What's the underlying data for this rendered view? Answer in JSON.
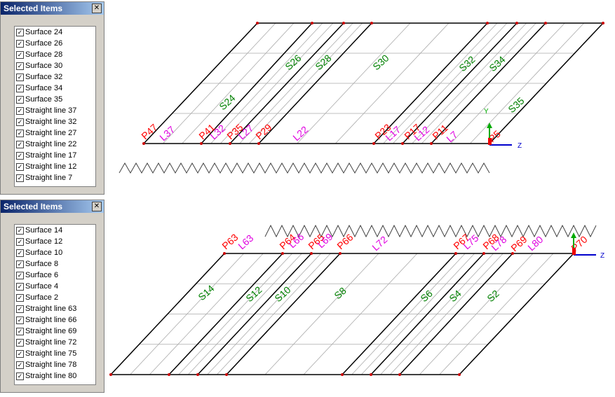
{
  "panels": [
    {
      "title": "Selected Items",
      "items": [
        "Surface 24",
        "Surface 26",
        "Surface 28",
        "Surface 30",
        "Surface 32",
        "Surface 34",
        "Surface 35",
        "Straight line 37",
        "Straight line 32",
        "Straight line 27",
        "Straight line 22",
        "Straight line 17",
        "Straight line 12",
        "Straight line 7"
      ]
    },
    {
      "title": "Selected Items",
      "items": [
        "Surface 14",
        "Surface 12",
        "Surface 10",
        "Surface 8",
        "Surface 6",
        "Surface 4",
        "Surface 2",
        "Straight line 63",
        "Straight line 66",
        "Straight line 69",
        "Straight line 72",
        "Straight line 75",
        "Straight line 78",
        "Straight line 80"
      ]
    }
  ],
  "views": [
    {
      "surfaces": {
        "color": "#008000",
        "labels": [
          "S24",
          "S26",
          "S28",
          "S30",
          "S32",
          "S34",
          "S35"
        ]
      },
      "points": {
        "color": "#ff0000",
        "labels": [
          "P47",
          "P41",
          "P35",
          "P29",
          "P23",
          "P17",
          "P11",
          "P5"
        ]
      },
      "lines": {
        "color": "#e000e0",
        "labels": [
          "L37",
          "L32",
          "L27",
          "L22",
          "L17",
          "L12",
          "L7"
        ]
      },
      "axes": [
        "Y",
        "Z"
      ]
    },
    {
      "surfaces": {
        "color": "#008000",
        "labels": [
          "S14",
          "S12",
          "S10",
          "S8",
          "S6",
          "S4",
          "S2"
        ]
      },
      "points": {
        "color": "#ff0000",
        "labels": [
          "P63",
          "P64",
          "P65",
          "P66",
          "P67",
          "P68",
          "P69",
          "P70"
        ]
      },
      "lines": {
        "color": "#e000e0",
        "labels": [
          "L63",
          "L66",
          "L69",
          "L72",
          "L75",
          "L78",
          "L80"
        ]
      },
      "axes": [
        "Z"
      ]
    }
  ]
}
